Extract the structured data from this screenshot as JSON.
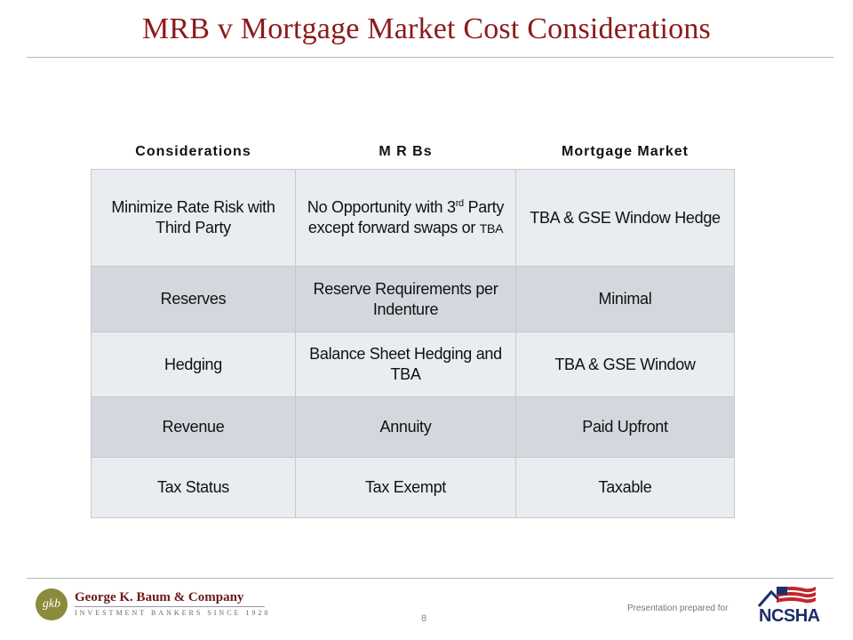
{
  "slide": {
    "title": "MRB v Mortgage Market Cost Considerations",
    "page_number": "8"
  },
  "table": {
    "headers": [
      "Considerations",
      "M R Bs",
      "Mortgage Market"
    ],
    "rows": [
      {
        "consideration": "Minimize Rate Risk with Third Party",
        "mrbs_pre": "No Opportunity with 3",
        "mrbs_sup": "rd",
        "mrbs_mid": " Party except forward swaps or ",
        "mrbs_small": "TBA",
        "mortgage": "TBA & GSE Window Hedge"
      },
      {
        "consideration": "Reserves",
        "mrbs": "Reserve Requirements per Indenture",
        "mortgage": "Minimal"
      },
      {
        "consideration": "Hedging",
        "mrbs": "Balance Sheet Hedging and TBA",
        "mortgage": "TBA & GSE Window"
      },
      {
        "consideration": "Revenue",
        "mrbs": "Annuity",
        "mortgage": "Paid Upfront"
      },
      {
        "consideration": "Tax Status",
        "mrbs": "Tax Exempt",
        "mortgage": "Taxable"
      }
    ]
  },
  "footer": {
    "company_monogram": "gkb",
    "company_name": "George K. Baum & Company",
    "company_tagline": "INVESTMENT BANKERS SINCE 1928",
    "prepared_for": "Presentation prepared for",
    "client_logo_text": "NCSHA"
  },
  "colors": {
    "title": "#8b1a1a",
    "row_light": "#e9ecf0",
    "row_dark": "#d3d8de",
    "ncsha_blue": "#1b2f6b",
    "ncsha_red": "#c0282d"
  }
}
